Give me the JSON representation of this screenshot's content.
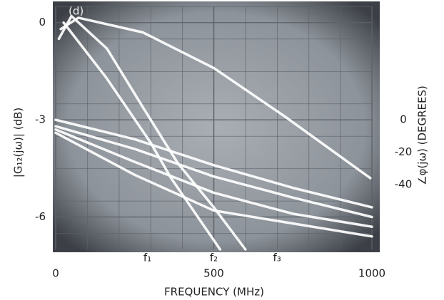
{
  "chart_data": {
    "type": "line",
    "panel_label": "(d)",
    "xlabel": "FREQUENCY (MHz)",
    "ylabel": "|G₁₂(jω)| (dB)",
    "y2label": "∠φ(jω) (DEGREES)",
    "xlim": [
      0,
      1000
    ],
    "xticks": [
      0,
      500,
      1000
    ],
    "ylim": [
      -7,
      0.5
    ],
    "yticks": [
      0,
      -3,
      -6
    ],
    "y2lim": [
      -80,
      70
    ],
    "y2ticks": [
      0,
      -20,
      -40
    ],
    "grid": true,
    "annotations": [
      {
        "text": "f₁",
        "x": 290
      },
      {
        "text": "f₂",
        "x": 500
      },
      {
        "text": "f₃",
        "x": 700
      }
    ],
    "series": [
      {
        "color": "#ffffff",
        "axis": "y",
        "x": [
          16,
          72,
          275,
          500,
          725,
          995
        ],
        "values": [
          -0.2,
          0.15,
          -0.3,
          -1.4,
          -2.9,
          -4.8
        ]
      },
      {
        "color": "#ffffff",
        "axis": "y",
        "x": [
          10,
          50,
          162,
          275,
          387,
          500,
          600
        ],
        "values": [
          -0.5,
          0.2,
          -0.8,
          -2.6,
          -4.35,
          -5.7,
          -7.0
        ]
      },
      {
        "color": "#ffffff",
        "axis": "y",
        "x": [
          25,
          160,
          300,
          365,
          520
        ],
        "values": [
          0,
          -1.7,
          -3.7,
          -4.8,
          -7.0
        ]
      },
      {
        "color": "#ffffff",
        "axis": "y2",
        "x": [
          0,
          250,
          500,
          750,
          1000
        ],
        "values": [
          0,
          -12,
          -28,
          -42,
          -54
        ]
      },
      {
        "color": "#ffffff",
        "axis": "y2",
        "x": [
          0,
          250,
          500,
          750,
          1000
        ],
        "values": [
          -4,
          -18,
          -35,
          -48,
          -60
        ]
      },
      {
        "color": "#ffffff",
        "axis": "y2",
        "x": [
          0,
          250,
          500,
          750,
          1000
        ],
        "values": [
          -6,
          -26,
          -45,
          -58,
          -66
        ]
      },
      {
        "color": "#ffffff",
        "axis": "y2",
        "x": [
          0,
          250,
          500,
          750,
          1000
        ],
        "values": [
          -8,
          -34,
          -56,
          -64,
          -72
        ]
      }
    ]
  }
}
